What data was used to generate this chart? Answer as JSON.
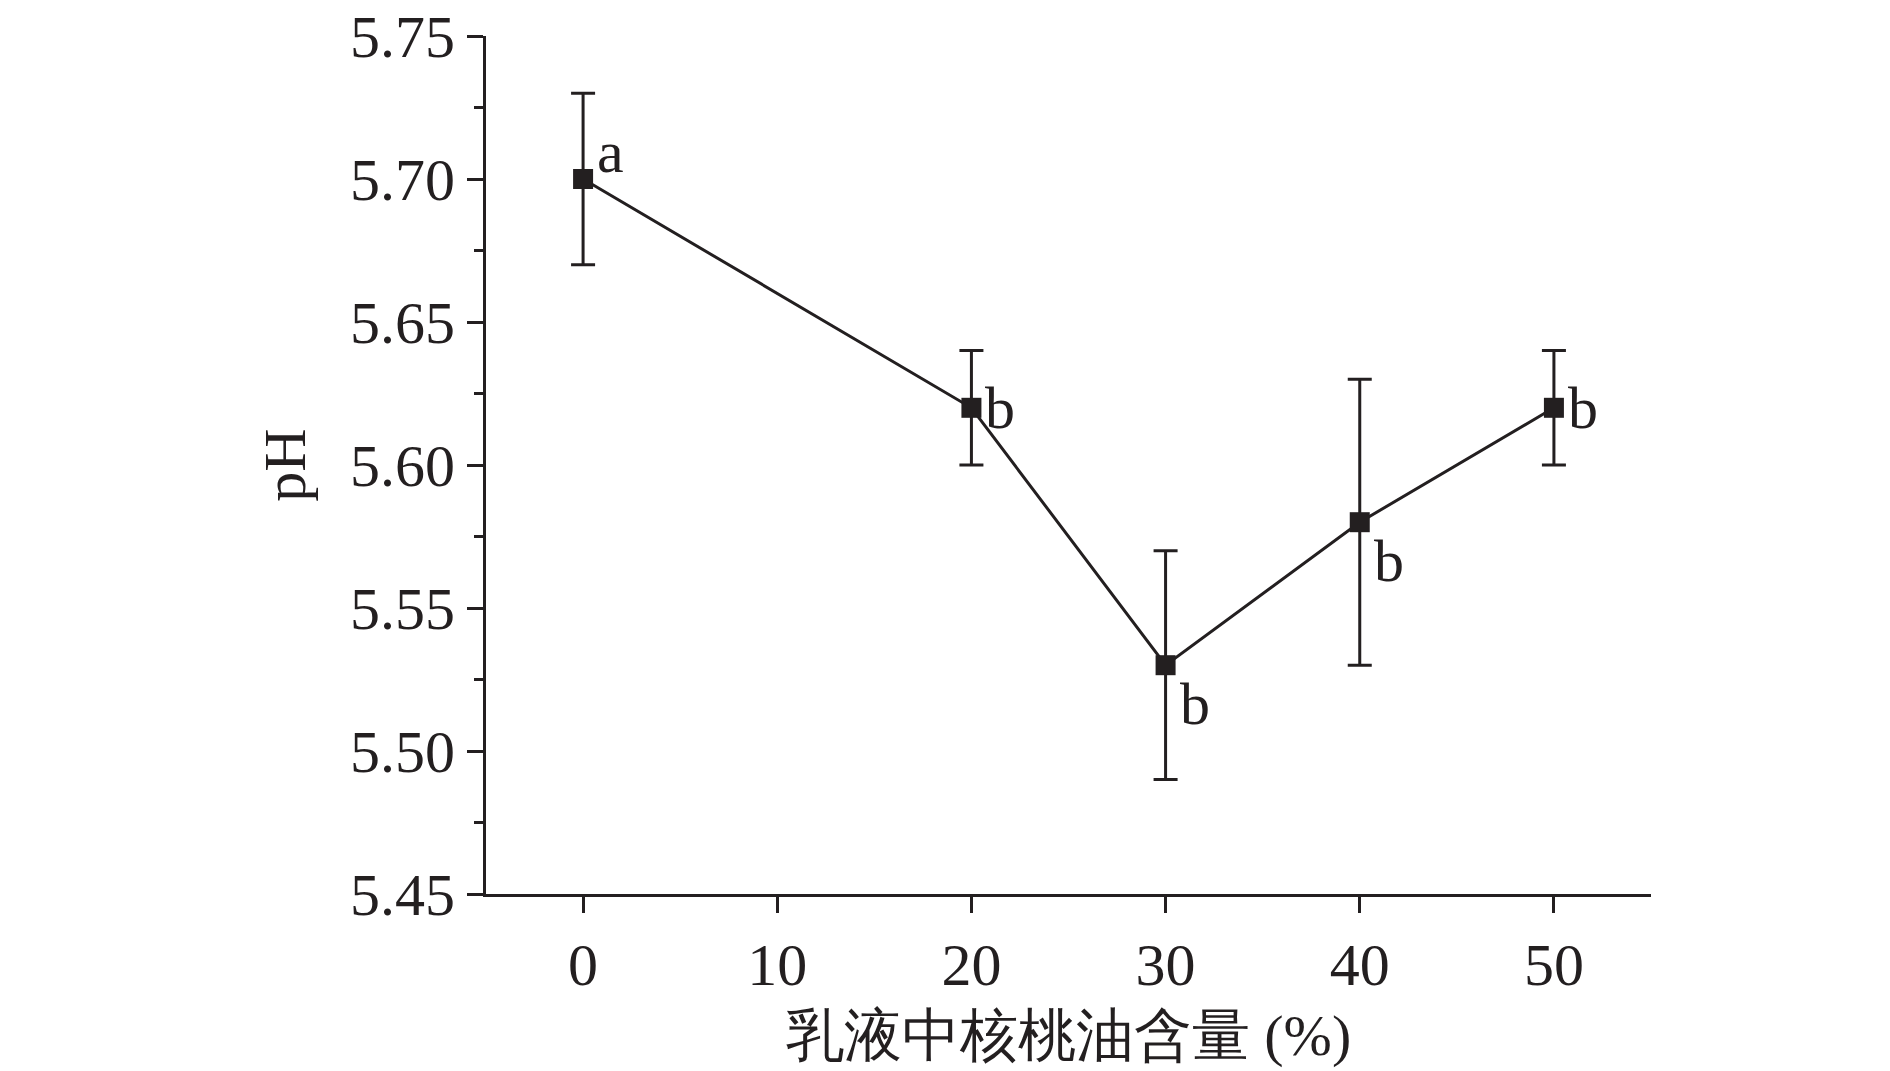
{
  "chart_data": {
    "type": "line",
    "xlabel": "乳液中核桃油含量 (%)",
    "ylabel": "pH",
    "x": [
      0,
      20,
      30,
      40,
      50
    ],
    "series": [
      {
        "color": "#231f20",
        "values": [
          5.7,
          5.62,
          5.53,
          5.58,
          5.62
        ],
        "errors": [
          0.03,
          0.02,
          0.04,
          0.05,
          0.02
        ]
      }
    ],
    "annotations": [
      {
        "text": "a",
        "x": 0,
        "y": 5.7
      },
      {
        "text": "b",
        "x": 20,
        "y": 5.62
      },
      {
        "text": "b",
        "x": 30,
        "y": 5.53
      },
      {
        "text": "b",
        "x": 40,
        "y": 5.58
      },
      {
        "text": "b",
        "x": 50,
        "y": 5.62
      }
    ],
    "xlim": [
      -5,
      55
    ],
    "xticks": [
      0,
      10,
      20,
      30,
      40,
      50
    ],
    "ylim": [
      5.45,
      5.75
    ],
    "yticks": [
      5.45,
      {
        "value": 5.475,
        "label": null
      },
      {
        "value": 5.5,
        "label": "5.50"
      },
      {
        "value": 5.525,
        "label": null
      },
      5.55,
      {
        "value": 5.575,
        "label": null
      },
      {
        "value": 5.6,
        "label": "5.60"
      },
      {
        "value": 5.625,
        "label": null
      },
      5.65,
      {
        "value": 5.675,
        "label": null
      },
      {
        "value": 5.7,
        "label": "5.70"
      },
      {
        "value": 5.725,
        "label": null
      },
      5.75
    ],
    "marker": "square",
    "line_style": "solid",
    "grid": false
  }
}
